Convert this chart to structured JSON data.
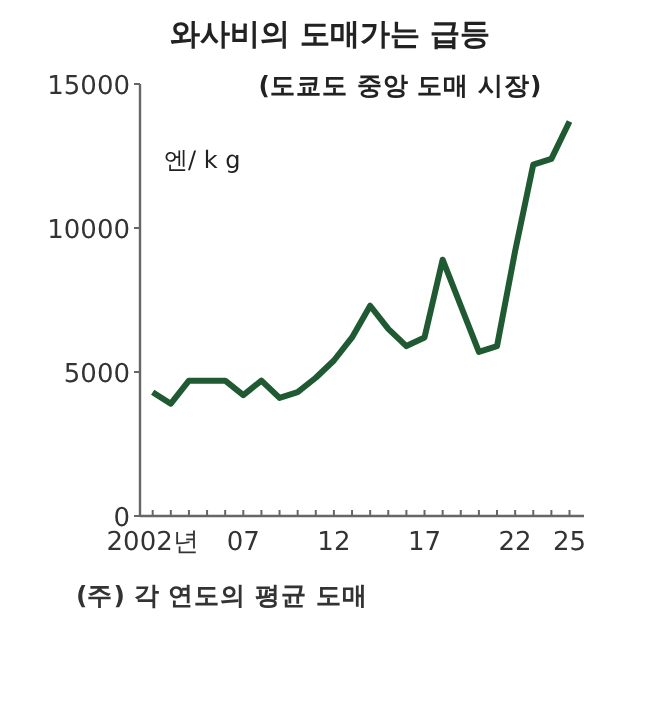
{
  "chart_data": {
    "type": "line",
    "title": "와사비의 도매가는 급등",
    "subtitle": "(도쿄도 중앙 도매 시장)",
    "ylabel": "엔/ k g",
    "annotations": [
      "(주) 각 연도의 평균 도매"
    ],
    "x": [
      2002,
      2003,
      2004,
      2005,
      2006,
      2007,
      2008,
      2009,
      2010,
      2011,
      2012,
      2013,
      2014,
      2015,
      2016,
      2017,
      2018,
      2019,
      2020,
      2021,
      2022,
      2023,
      2024,
      2025
    ],
    "series": [
      {
        "color": "#1f5a33",
        "values": [
          4300,
          3900,
          4700,
          4700,
          4700,
          4200,
          4700,
          4100,
          4300,
          4800,
          5400,
          6200,
          7300,
          6500,
          5900,
          6200,
          8900,
          7300,
          5700,
          5900,
          9200,
          12200,
          12400,
          13700
        ]
      }
    ],
    "xlim": [
      2001.3,
      2025.8
    ],
    "xticks": [
      {
        "value": 2002,
        "label": "2002년"
      },
      {
        "value": 2003,
        "label": null
      },
      {
        "value": 2004,
        "label": null
      },
      {
        "value": 2005,
        "label": null
      },
      {
        "value": 2006,
        "label": null
      },
      {
        "value": 2007,
        "label": "07"
      },
      {
        "value": 2008,
        "label": null
      },
      {
        "value": 2009,
        "label": null
      },
      {
        "value": 2010,
        "label": null
      },
      {
        "value": 2011,
        "label": null
      },
      {
        "value": 2012,
        "label": "12"
      },
      {
        "value": 2013,
        "label": null
      },
      {
        "value": 2014,
        "label": null
      },
      {
        "value": 2015,
        "label": null
      },
      {
        "value": 2016,
        "label": null
      },
      {
        "value": 2017,
        "label": "17"
      },
      {
        "value": 2018,
        "label": null
      },
      {
        "value": 2019,
        "label": null
      },
      {
        "value": 2020,
        "label": null
      },
      {
        "value": 2021,
        "label": null
      },
      {
        "value": 2022,
        "label": "22"
      },
      {
        "value": 2023,
        "label": null
      },
      {
        "value": 2024,
        "label": null
      },
      {
        "value": 2025,
        "label": "25"
      }
    ],
    "ylim": [
      0,
      15000
    ],
    "yticks": [
      0,
      5000,
      10000,
      15000
    ]
  }
}
